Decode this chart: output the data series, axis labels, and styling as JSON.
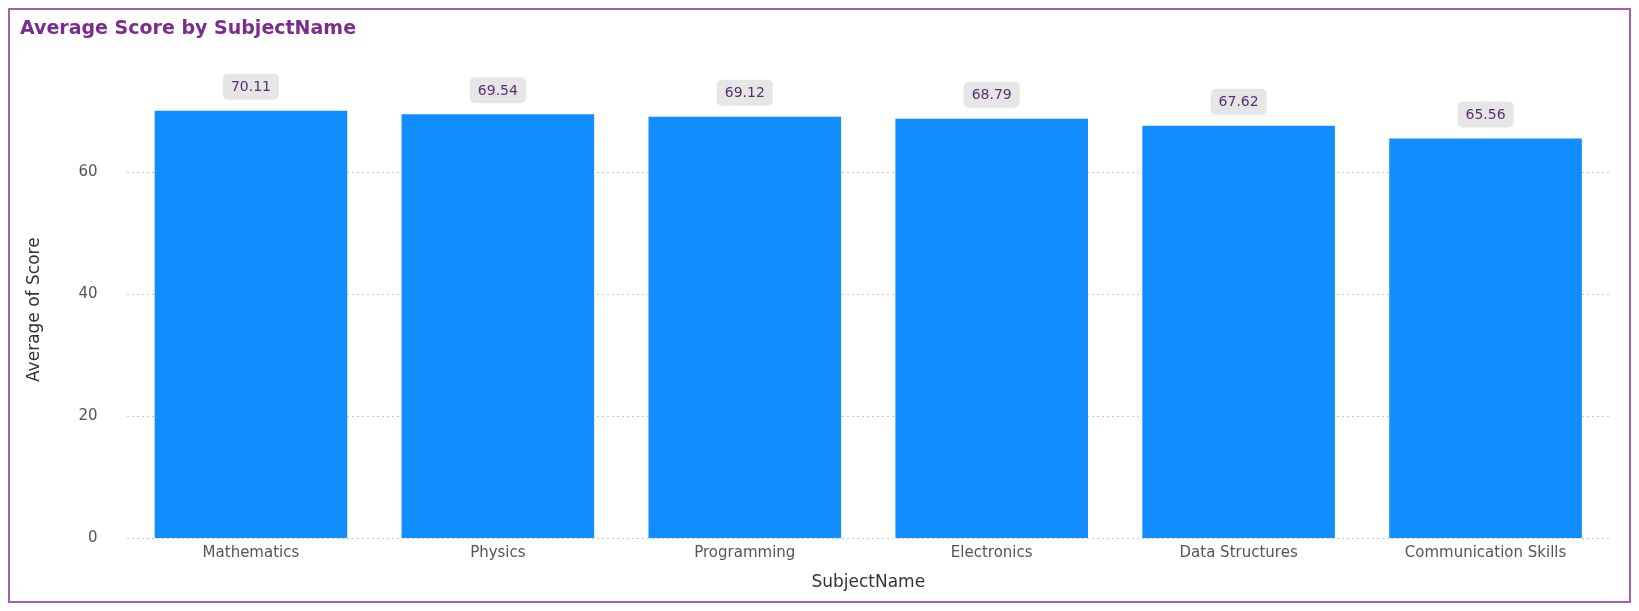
{
  "chart_data": {
    "type": "bar",
    "title": "Average Score by SubjectName",
    "xlabel": "SubjectName",
    "ylabel": "Average of Score",
    "categories": [
      "Mathematics",
      "Physics",
      "Programming",
      "Electronics",
      "Data Structures",
      "Communication Skills"
    ],
    "values": [
      70.11,
      69.54,
      69.12,
      68.79,
      67.62,
      65.56
    ],
    "color": "#118dff",
    "ylim": [
      0,
      75
    ],
    "yticks": [
      0,
      20,
      40,
      60
    ],
    "grid": "y",
    "data_labels": true,
    "legend": false
  }
}
